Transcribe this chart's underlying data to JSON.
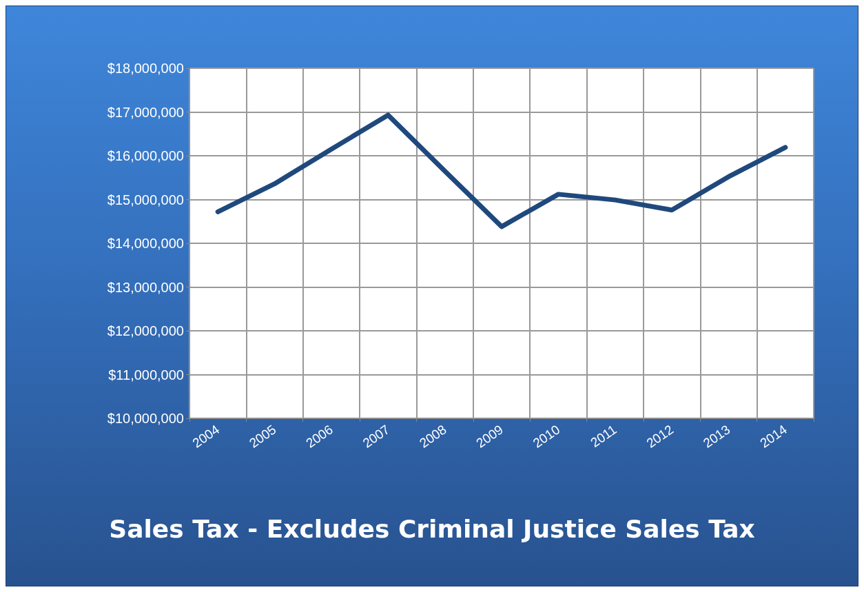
{
  "chart_data": {
    "type": "line",
    "title": "Sales Tax - Excludes Criminal Justice Sales Tax",
    "categories": [
      "2004",
      "2005",
      "2006",
      "2007",
      "2008",
      "2009",
      "2010",
      "2011",
      "2012",
      "2013",
      "2014"
    ],
    "series": [
      {
        "color": "#1f497d",
        "values": [
          14720000,
          15360000,
          16150000,
          16930000,
          15650000,
          14380000,
          15120000,
          14990000,
          14760000,
          15520000,
          16190000
        ]
      }
    ],
    "ylim": [
      10000000,
      18000000
    ],
    "yticks": [
      {
        "value": 10000000,
        "label": "$10,000,000"
      },
      {
        "value": 11000000,
        "label": "$11,000,000"
      },
      {
        "value": 12000000,
        "label": "$12,000,000"
      },
      {
        "value": 13000000,
        "label": "$13,000,000"
      },
      {
        "value": 14000000,
        "label": "$14,000,000"
      },
      {
        "value": 15000000,
        "label": "$15,000,000"
      },
      {
        "value": 16000000,
        "label": "$16,000,000"
      },
      {
        "value": 17000000,
        "label": "$17,000,000"
      },
      {
        "value": 18000000,
        "label": "$18,000,000"
      }
    ],
    "grid": true,
    "marker": "none",
    "line_style": "solid"
  }
}
